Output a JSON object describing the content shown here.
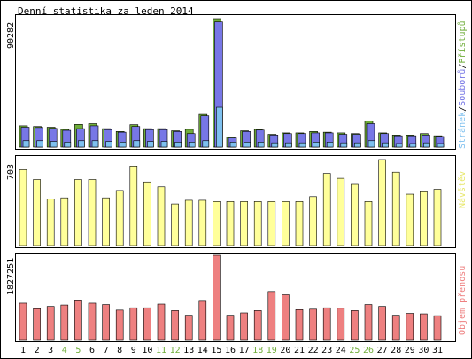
{
  "chart_data": {
    "type": "bar",
    "title": "Denní statistika za leden 2014",
    "categories": [
      "1",
      "2",
      "3",
      "4",
      "5",
      "6",
      "7",
      "8",
      "9",
      "10",
      "11",
      "12",
      "13",
      "14",
      "15",
      "16",
      "17",
      "18",
      "19",
      "20",
      "21",
      "22",
      "23",
      "24",
      "25",
      "26",
      "27",
      "28",
      "29",
      "30",
      "31"
    ],
    "highlighted_days": [
      "4",
      "5",
      "11",
      "12",
      "18",
      "19",
      "25",
      "26"
    ],
    "panels": [
      {
        "id": "hits",
        "ymax_label": "90282",
        "ymax": 90282,
        "legend": [
          "Stránek",
          "Souborů",
          "Přístupů"
        ],
        "legend_separator": "/",
        "series": [
          {
            "name": "Přístupů",
            "color": "#6fad3a",
            "values": [
              15000,
              14500,
              14000,
              12500,
              16000,
              16500,
              13000,
              11000,
              15800,
              13000,
              13000,
              11500,
              12500,
              23000,
              90282,
              7000,
              11500,
              12500,
              9000,
              10000,
              10000,
              11000,
              10500,
              10000,
              9500,
              18500,
              10000,
              8500,
              8500,
              9500,
              8000
            ]
          },
          {
            "name": "Souborů",
            "color": "#7777e6",
            "values": [
              14000,
              13800,
              13200,
              11800,
              13000,
              15000,
              12300,
              10500,
              14500,
              12300,
              12300,
              11000,
              9500,
              22000,
              88000,
              6500,
              11000,
              12000,
              8500,
              9500,
              9500,
              10000,
              10000,
              9000,
              9000,
              16500,
              9500,
              8000,
              8000,
              8500,
              7500
            ]
          },
          {
            "name": "Stránek",
            "color": "#7ec0ef",
            "values": [
              4500,
              4500,
              4000,
              3500,
              4500,
              4500,
              4000,
              3500,
              4500,
              4000,
              4000,
              3500,
              3500,
              4500,
              28000,
              3500,
              3500,
              3500,
              3000,
              3000,
              3000,
              3500,
              3500,
              3000,
              3000,
              4500,
              3000,
              2500,
              2500,
              3000,
              2500
            ]
          }
        ]
      },
      {
        "id": "visits",
        "ymax_label": "703",
        "ymax": 703,
        "legend": [
          "Návštěv"
        ],
        "series": [
          {
            "name": "Návštěv",
            "color": "#ffff9a",
            "values": [
              620,
              540,
              380,
              390,
              540,
              540,
              390,
              450,
              650,
              520,
              480,
              340,
              370,
              370,
              360,
              360,
              360,
              360,
              360,
              360,
              360,
              400,
              590,
              550,
              500,
              360,
              703,
              600,
              420,
              440,
              460
            ]
          }
        ]
      },
      {
        "id": "transfer",
        "ymax_label": "1827251",
        "ymax": 1827251,
        "legend": [
          "Objem přenosu"
        ],
        "series": [
          {
            "name": "Objem přenosu",
            "color": "#ee8080",
            "values": [
              800000,
              680000,
              730000,
              760000,
              850000,
              800000,
              770000,
              650000,
              700000,
              700000,
              780000,
              640000,
              540000,
              840000,
              1827251,
              540000,
              590000,
              640000,
              1050000,
              980000,
              660000,
              670000,
              700000,
              690000,
              640000,
              770000,
              730000,
              540000,
              580000,
              570000,
              530000
            ]
          }
        ]
      }
    ]
  }
}
